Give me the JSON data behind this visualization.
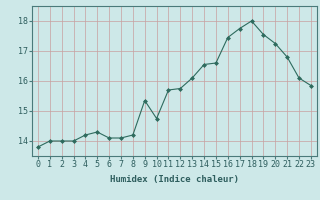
{
  "x": [
    0,
    1,
    2,
    3,
    4,
    5,
    6,
    7,
    8,
    9,
    10,
    11,
    12,
    13,
    14,
    15,
    16,
    17,
    18,
    19,
    20,
    21,
    22,
    23
  ],
  "y": [
    13.8,
    14.0,
    14.0,
    14.0,
    14.2,
    14.3,
    14.1,
    14.1,
    14.2,
    15.35,
    14.75,
    15.7,
    15.75,
    16.1,
    16.55,
    16.6,
    17.45,
    17.75,
    18.0,
    17.55,
    17.25,
    16.8,
    16.1,
    15.85
  ],
  "line_color": "#2e6b5e",
  "marker": "D",
  "marker_size": 2.0,
  "bg_color": "#cde8e8",
  "grid_color_major": "#c8a0a0",
  "grid_color_minor": "#d4b8b8",
  "xlabel": "Humidex (Indice chaleur)",
  "ylim": [
    13.5,
    18.5
  ],
  "yticks": [
    14,
    15,
    16,
    17,
    18
  ],
  "xticks": [
    0,
    1,
    2,
    3,
    4,
    5,
    6,
    7,
    8,
    9,
    10,
    11,
    12,
    13,
    14,
    15,
    16,
    17,
    18,
    19,
    20,
    21,
    22,
    23
  ],
  "label_fontsize": 6.5,
  "tick_fontsize": 6.0
}
